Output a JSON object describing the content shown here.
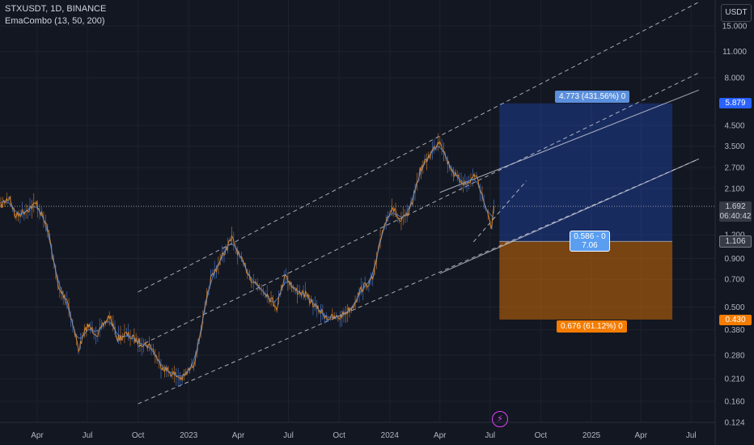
{
  "header": {
    "symbol_line": "STXUSDT, 1D, BINANCE",
    "indicator_line": "EmaCombo (13, 50, 200)"
  },
  "currency_button": "USDT",
  "position_tool": {
    "target_label": "4.773 (431.56%) 0",
    "center_label_1": "0.586 - 0",
    "center_label_2": "7.06",
    "stop_label": "0.676 (61.12%) 0",
    "target_color": "#2962ff",
    "stop_color": "#f57c00"
  },
  "price_labels": {
    "target": "5.879",
    "current": "1.692",
    "countdown": "06:40:42",
    "entry": "1.106",
    "stop": "0.430"
  },
  "logo_icon": "lightning-icon",
  "chart_data": {
    "type": "candlestick",
    "symbol": "STXUSDT",
    "interval": "1D",
    "exchange": "BINANCE",
    "y_scale": "log",
    "ylim": [
      0.124,
      22
    ],
    "y_ticks": [
      "15.000",
      "11.000",
      "8.000",
      "4.500",
      "3.500",
      "2.700",
      "2.100",
      "1.200",
      "0.900",
      "0.700",
      "0.500",
      "0.380",
      "0.280",
      "0.210",
      "0.160",
      "0.124"
    ],
    "x_ticks": [
      "Apr",
      "Jul",
      "Oct",
      "2023",
      "Apr",
      "Jul",
      "Oct",
      "2024",
      "Apr",
      "Jul",
      "Oct",
      "2025",
      "Apr",
      "Jul"
    ],
    "price_path": [
      [
        "2022-01-25",
        1.7
      ],
      [
        "2022-02-10",
        1.9
      ],
      [
        "2022-02-20",
        1.5
      ],
      [
        "2022-03-10",
        1.6
      ],
      [
        "2022-03-31",
        1.75
      ],
      [
        "2022-04-20",
        1.3
      ],
      [
        "2022-05-10",
        0.62
      ],
      [
        "2022-05-25",
        0.55
      ],
      [
        "2022-06-15",
        0.3
      ],
      [
        "2022-07-01",
        0.4
      ],
      [
        "2022-07-20",
        0.36
      ],
      [
        "2022-08-10",
        0.45
      ],
      [
        "2022-08-25",
        0.34
      ],
      [
        "2022-09-10",
        0.36
      ],
      [
        "2022-10-01",
        0.33
      ],
      [
        "2022-10-25",
        0.31
      ],
      [
        "2022-11-10",
        0.25
      ],
      [
        "2022-11-25",
        0.23
      ],
      [
        "2022-12-20",
        0.21
      ],
      [
        "2023-01-10",
        0.25
      ],
      [
        "2023-01-25",
        0.4
      ],
      [
        "2023-02-10",
        0.7
      ],
      [
        "2023-03-01",
        0.9
      ],
      [
        "2023-03-20",
        1.15
      ],
      [
        "2023-04-05",
        0.9
      ],
      [
        "2023-04-25",
        0.7
      ],
      [
        "2023-05-20",
        0.6
      ],
      [
        "2023-06-10",
        0.5
      ],
      [
        "2023-06-25",
        0.75
      ],
      [
        "2023-07-10",
        0.62
      ],
      [
        "2023-08-01",
        0.58
      ],
      [
        "2023-08-20",
        0.5
      ],
      [
        "2023-09-10",
        0.44
      ],
      [
        "2023-10-01",
        0.44
      ],
      [
        "2023-10-25",
        0.5
      ],
      [
        "2023-11-10",
        0.62
      ],
      [
        "2023-12-01",
        0.7
      ],
      [
        "2023-12-20",
        1.3
      ],
      [
        "2024-01-05",
        1.7
      ],
      [
        "2024-01-20",
        1.4
      ],
      [
        "2024-02-05",
        1.55
      ],
      [
        "2024-02-25",
        2.6
      ],
      [
        "2024-03-15",
        3.2
      ],
      [
        "2024-04-01",
        3.8
      ],
      [
        "2024-04-15",
        2.9
      ],
      [
        "2024-05-01",
        2.4
      ],
      [
        "2024-05-20",
        2.2
      ],
      [
        "2024-06-05",
        2.5
      ],
      [
        "2024-06-20",
        1.8
      ],
      [
        "2024-07-03",
        1.3
      ],
      [
        "2024-07-08",
        1.692
      ]
    ],
    "channel_lines": [
      {
        "style": "dashed",
        "from": [
          "2022-10-01",
          0.6
        ],
        "to": [
          "2025-07-15",
          20.0
        ]
      },
      {
        "style": "dashed",
        "from": [
          "2022-10-01",
          0.31
        ],
        "to": [
          "2025-07-15",
          8.5
        ]
      },
      {
        "style": "dashed",
        "from": [
          "2022-10-01",
          0.155
        ],
        "to": [
          "2025-07-15",
          3.0
        ]
      },
      {
        "style": "solid",
        "from": [
          "2024-04-01",
          2.0
        ],
        "to": [
          "2025-07-15",
          6.9
        ]
      },
      {
        "style": "solid",
        "from": [
          "2024-04-01",
          0.75
        ],
        "to": [
          "2025-07-15",
          3.0
        ]
      },
      {
        "style": "dashed",
        "from": [
          "2024-06-01",
          1.1
        ],
        "to": [
          "2024-09-05",
          2.3
        ]
      }
    ],
    "position": {
      "start": "2024-07-18",
      "end": "2025-05-28",
      "target_price": 5.879,
      "entry_price": 1.106,
      "stop_price": 0.43
    },
    "current_price": 1.692,
    "grid": true,
    "ema_periods": [
      13,
      50,
      200
    ],
    "ema_colors": [
      "#ff9800",
      "#2962ff",
      "#ffffff"
    ]
  }
}
